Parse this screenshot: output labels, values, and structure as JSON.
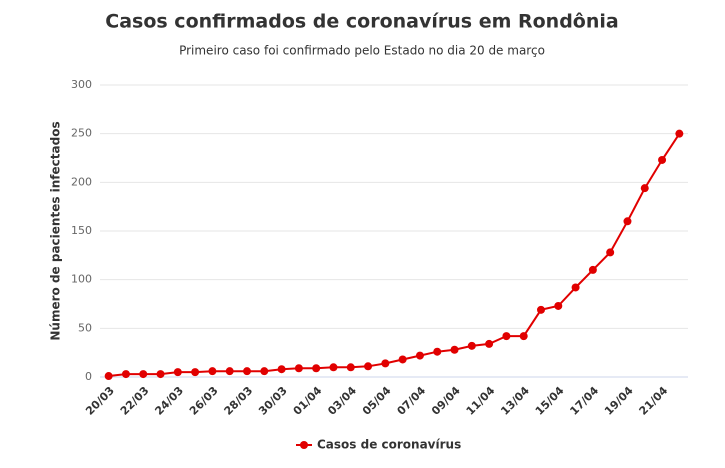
{
  "chart_data": {
    "type": "line",
    "title": "Casos confirmados de coronavírus em Rondônia",
    "subtitle": "Primeiro caso foi confirmado pelo Estado no dia 20 de março",
    "y_label": "Número de pacientes infectados",
    "categories": [
      "20/03",
      null,
      "22/03",
      null,
      "24/03",
      null,
      "26/03",
      null,
      "28/03",
      null,
      "30/03",
      null,
      "01/04",
      null,
      "03/04",
      null,
      "05/04",
      null,
      "07/04",
      null,
      "09/04",
      null,
      "11/04",
      null,
      "13/04",
      null,
      "15/04",
      null,
      "17/04",
      null,
      "19/04",
      null,
      "21/04",
      null
    ],
    "series": [
      {
        "name": "Casos de coronavírus",
        "color": "#e10000",
        "values": [
          1,
          3,
          3,
          3,
          5,
          5,
          6,
          6,
          6,
          6,
          8,
          9,
          9,
          10,
          10,
          11,
          14,
          18,
          22,
          26,
          28,
          32,
          34,
          42,
          42,
          69,
          73,
          92,
          110,
          128,
          160,
          194,
          223,
          250
        ]
      }
    ],
    "ylim": [
      0,
      300
    ],
    "yticks": [
      0,
      50,
      100,
      150,
      200,
      250,
      300
    ],
    "grid": true,
    "legend": "bottom"
  }
}
